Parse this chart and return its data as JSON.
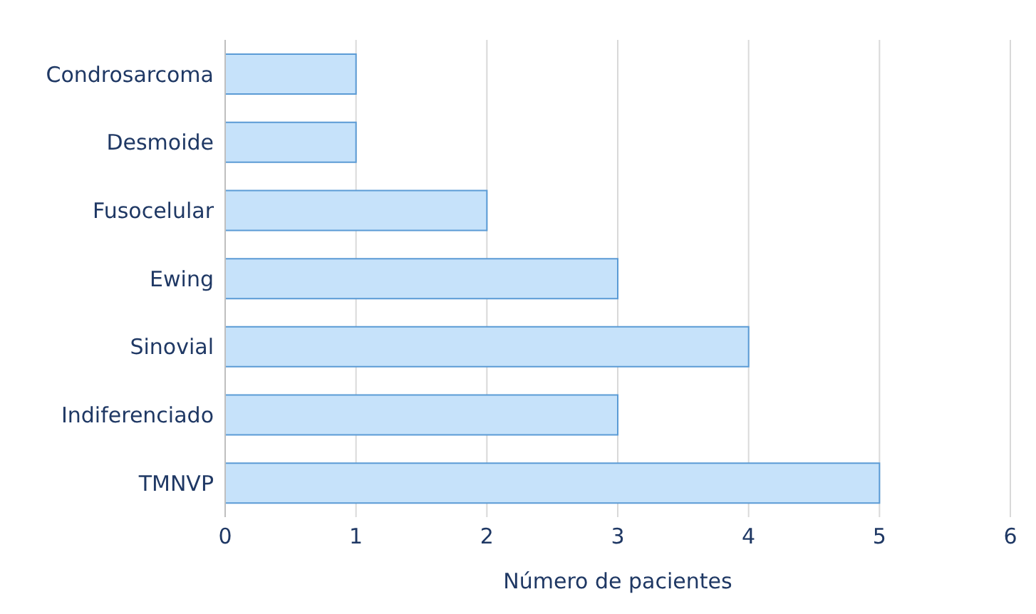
{
  "chart_data": {
    "type": "bar",
    "orientation": "horizontal",
    "xlabel": "Número de pacientes",
    "categories": [
      "Condrosarcoma",
      "Desmoide",
      "Fusocelular",
      "Ewing",
      "Sinovial",
      "Indiferenciado",
      "TMNVP"
    ],
    "values": [
      1,
      1,
      2,
      3,
      4,
      3,
      5
    ],
    "color": "#c6e2fa",
    "xlim": [
      0,
      6
    ],
    "xticks": [
      0,
      1,
      2,
      3,
      4,
      5,
      6
    ],
    "grid": "x"
  }
}
